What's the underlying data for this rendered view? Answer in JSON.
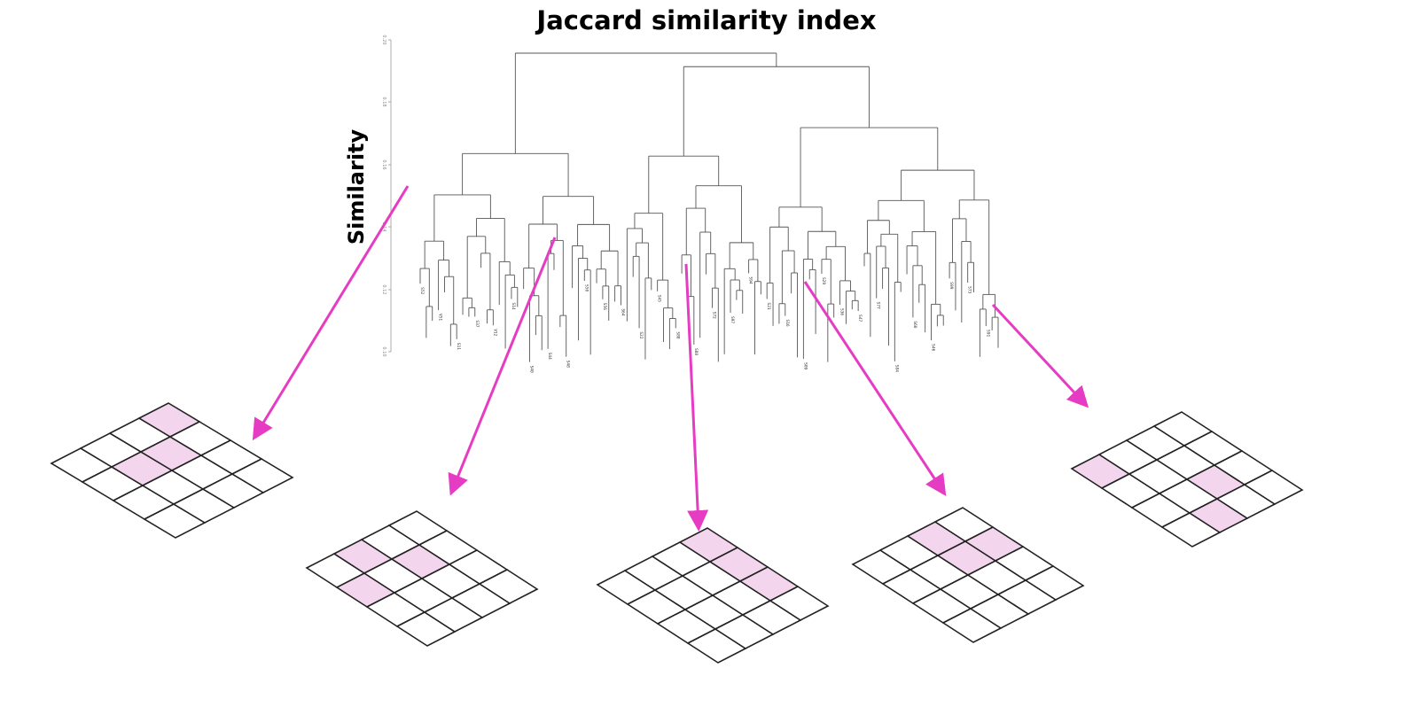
{
  "title": "Jaccard similarity index",
  "y_axis_label": "Similarity",
  "colors": {
    "arrow": "#e63cc3",
    "highlight_cell": "#f3d6ee",
    "grid_line": "#222222",
    "dendrogram_line": "#555555"
  },
  "axis_ticks": [
    "0.20",
    "0.18",
    "0.16",
    "0.14",
    "0.12",
    "0.10"
  ],
  "leaf_labels_sample": [
    "S52",
    "V51",
    "S11",
    "S37",
    "V12",
    "S14",
    "S40",
    "S44",
    "S48",
    "S50",
    "S56",
    "S64",
    "S22",
    "S45",
    "S80",
    "S88",
    "S72",
    "S97",
    "S94",
    "S21",
    "S16",
    "S09",
    "S29",
    "S36",
    "S47",
    "S77",
    "S84",
    "S60",
    "S46",
    "S99",
    "S73",
    "S91"
  ],
  "matrices": [
    {
      "name": "matrix-1",
      "rows": 4,
      "cols": 4,
      "highlighted": [
        [
          0,
          3
        ],
        [
          1,
          1
        ],
        [
          1,
          2
        ]
      ]
    },
    {
      "name": "matrix-2",
      "rows": 4,
      "cols": 4,
      "highlighted": [
        [
          0,
          1
        ],
        [
          1,
          0
        ],
        [
          1,
          2
        ]
      ]
    },
    {
      "name": "matrix-3",
      "rows": 4,
      "cols": 4,
      "highlighted": [
        [
          0,
          3
        ],
        [
          1,
          3
        ],
        [
          2,
          3
        ]
      ]
    },
    {
      "name": "matrix-4",
      "rows": 4,
      "cols": 4,
      "highlighted": [
        [
          0,
          2
        ],
        [
          1,
          2
        ],
        [
          1,
          3
        ]
      ]
    },
    {
      "name": "matrix-5",
      "rows": 4,
      "cols": 4,
      "highlighted": [
        [
          0,
          0
        ],
        [
          2,
          2
        ],
        [
          3,
          1
        ]
      ]
    }
  ]
}
